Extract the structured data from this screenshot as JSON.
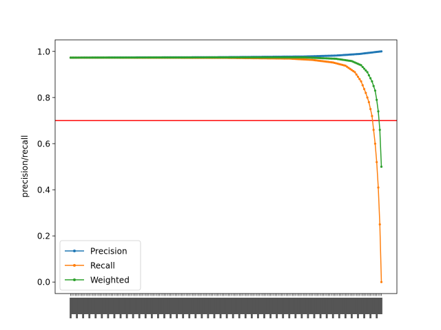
{
  "chart_data": {
    "type": "line",
    "title": "",
    "xlabel": "",
    "ylabel": "precision/recall",
    "n_points": 200,
    "x_tick_labels_note": "dense rotated numeric tick labels (illegible)",
    "ylim": [
      -0.05,
      1.05
    ],
    "yticks": [
      "0.0",
      "0.2",
      "0.4",
      "0.6",
      "0.8",
      "1.0"
    ],
    "threshold_line": {
      "y": 0.7,
      "color": "#ff0000"
    },
    "legend_position": "lower left",
    "grid": false,
    "series": [
      {
        "name": "Precision",
        "color": "#1f77b4",
        "segments": [
          [
            0,
            0.973
          ],
          [
            95,
            0.975
          ],
          [
            150,
            0.978
          ],
          [
            170,
            0.982
          ],
          [
            185,
            0.989
          ],
          [
            195,
            0.997
          ],
          [
            199,
            1.0
          ]
        ]
      },
      {
        "name": "Recall",
        "color": "#ff7f0e",
        "segments": [
          [
            0,
            0.973
          ],
          [
            100,
            0.972
          ],
          [
            140,
            0.969
          ],
          [
            155,
            0.963
          ],
          [
            168,
            0.952
          ],
          [
            176,
            0.938
          ],
          [
            182,
            0.91
          ],
          [
            186,
            0.87
          ],
          [
            189,
            0.82
          ],
          [
            191,
            0.78
          ],
          [
            193,
            0.72
          ],
          [
            194,
            0.66
          ],
          [
            195,
            0.6
          ],
          [
            196,
            0.52
          ],
          [
            197,
            0.41
          ],
          [
            198,
            0.25
          ],
          [
            199,
            0.0
          ]
        ]
      },
      {
        "name": "Weighted",
        "color": "#2ca02c",
        "segments": [
          [
            0,
            0.973
          ],
          [
            100,
            0.974
          ],
          [
            150,
            0.974
          ],
          [
            170,
            0.968
          ],
          [
            180,
            0.958
          ],
          [
            186,
            0.94
          ],
          [
            190,
            0.91
          ],
          [
            193,
            0.87
          ],
          [
            195,
            0.83
          ],
          [
            196,
            0.79
          ],
          [
            197,
            0.74
          ],
          [
            198,
            0.66
          ],
          [
            199,
            0.5
          ]
        ]
      }
    ]
  }
}
